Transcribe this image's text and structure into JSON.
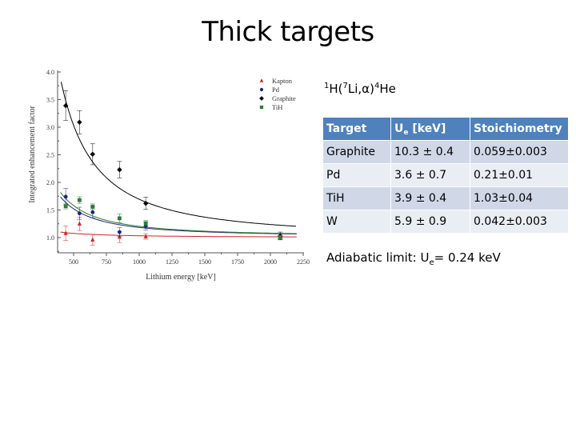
{
  "slide": {
    "title": "Thick targets",
    "reaction": {
      "prefix_mass": "1",
      "nucleus": "H(",
      "projectile_mass": "7",
      "projectile": "Li,α)",
      "product_mass": "4",
      "product": "He"
    },
    "table": {
      "headers": {
        "target": "Target",
        "ue_main": "U",
        "ue_sub": "e",
        "ue_unit": " [keV]",
        "stoichiometry": "Stoichiometry"
      },
      "rows": [
        {
          "target": "Graphite",
          "ue": "10.3 ± 0.4",
          "stoichiometry": "0.059±0.003"
        },
        {
          "target": "Pd",
          "ue": "3.6 ± 0.7",
          "stoichiometry": "0.21±0.01"
        },
        {
          "target": "TiH",
          "ue": "3.9 ± 0.4",
          "stoichiometry": "1.03±0.04"
        },
        {
          "target": "W",
          "ue": "5.9 ± 0.9",
          "stoichiometry": "0.042±0.003"
        }
      ],
      "header_color": "#4F81BD",
      "row_color_odd": "#D0D8E8",
      "row_color_even": "#E9EDF4"
    },
    "adiabatic": {
      "label": "Adiabatic limit: U",
      "sub": "e",
      "value": "= 0.24 keV"
    }
  },
  "chart_data": {
    "type": "scatter",
    "title": "",
    "xlabel": "Lithium energy [keV]",
    "ylabel": "Integrated enhancement factor",
    "xlim": [
      375,
      2250
    ],
    "ylim": [
      0.75,
      4.0
    ],
    "xticks": [
      500,
      750,
      1000,
      1250,
      1500,
      1750,
      2000,
      2250
    ],
    "xtick_labels": [
      "500",
      "750",
      "1000",
      "1250",
      "1500",
      "1750",
      "2000",
      "2250"
    ],
    "yticks": [
      1.0,
      1.5,
      2.0,
      2.5,
      3.0,
      3.5,
      4.0
    ],
    "ytick_labels": [
      "1.0",
      "1.5",
      "2.0",
      "2.5",
      "3.0",
      "3.5",
      "4.0"
    ],
    "grid": false,
    "legend_position": "upper right",
    "series": [
      {
        "name": "Kapton",
        "marker": "triangle",
        "color": "#D42020",
        "x": [
          440,
          545,
          645,
          850,
          1050,
          2075
        ],
        "y": [
          1.08,
          1.25,
          0.96,
          1.01,
          1.02,
          1.01
        ],
        "yerr": [
          0.13,
          0.12,
          0.1,
          0.1,
          0.05,
          0.02
        ],
        "fit": "near-flat curve ~1.10 at 400 keV to ~1.01 at 2200 keV"
      },
      {
        "name": "Pd",
        "marker": "circle",
        "color": "#1A237E",
        "x": [
          440,
          545,
          645,
          850,
          1050,
          2075
        ],
        "y": [
          1.74,
          1.44,
          1.46,
          1.1,
          1.21,
          1.02
        ],
        "yerr": [
          0.15,
          0.11,
          0.1,
          0.08,
          0.07,
          0.05
        ],
        "fit": "decaying curve ~1.72 at 400 keV to ~1.06 at 2200 keV"
      },
      {
        "name": "Graphite",
        "marker": "diamond",
        "color": "#000000",
        "x": [
          440,
          545,
          645,
          850,
          1050,
          2075
        ],
        "y": [
          3.39,
          3.09,
          2.51,
          2.23,
          1.62,
          1.03
        ],
        "yerr": [
          0.27,
          0.21,
          0.19,
          0.15,
          0.11,
          0.07
        ],
        "fit": "decaying curve ~4.0 at 405 keV to ~1.18 at 2200 keV"
      },
      {
        "name": "TiH",
        "marker": "square",
        "color": "#2E7D32",
        "x": [
          440,
          545,
          645,
          850,
          1050,
          2075
        ],
        "y": [
          1.57,
          1.68,
          1.56,
          1.35,
          1.26,
          1.01
        ],
        "yerr": [
          0.05,
          0.06,
          0.05,
          0.08,
          0.05,
          0.03
        ],
        "fit": "decaying curve ~1.80 at 400 keV to ~1.06 at 2200 keV"
      }
    ]
  }
}
